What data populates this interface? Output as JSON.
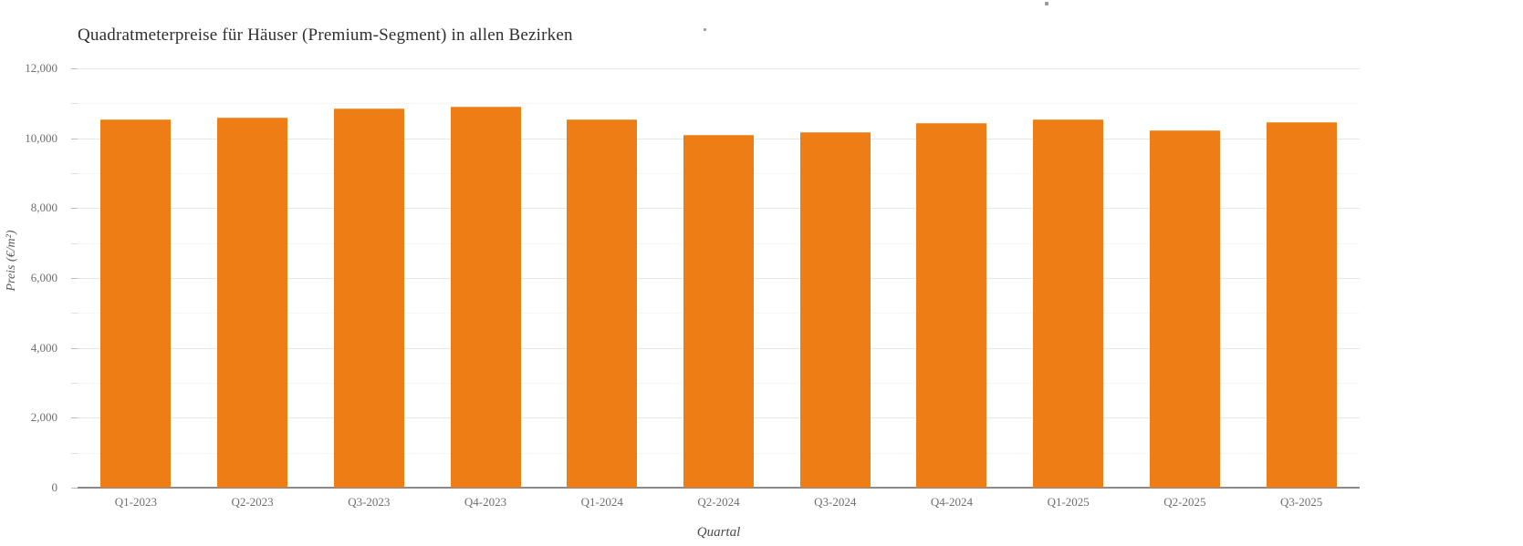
{
  "page": {
    "background_color": "#ffffff",
    "text_color": "#2f2f2f",
    "axis_label_color": "#6e6e6e"
  },
  "chart_data": {
    "type": "bar",
    "title": "Quadratmeterpreise für Häuser (Premium-Segment) in allen Bezirken",
    "xlabel": "Quartal",
    "ylabel": "Preis (€/m²)",
    "categories": [
      "Q1-2023",
      "Q2-2023",
      "Q3-2023",
      "Q4-2023",
      "Q1-2024",
      "Q2-2024",
      "Q3-2024",
      "Q4-2024",
      "Q1-2025",
      "Q2-2025",
      "Q3-2025"
    ],
    "values": [
      10550,
      10600,
      10850,
      10900,
      10540,
      10090,
      10180,
      10430,
      10550,
      10230,
      10450
    ],
    "bar_color": "#ef7d15",
    "ylim": [
      0,
      12000
    ],
    "y_major_ticks": [
      0,
      2000,
      4000,
      6000,
      8000,
      10000,
      12000
    ],
    "y_minor_step": 1000,
    "grid": true,
    "legend": "none",
    "y_tick_label_format": "thousands-comma"
  }
}
